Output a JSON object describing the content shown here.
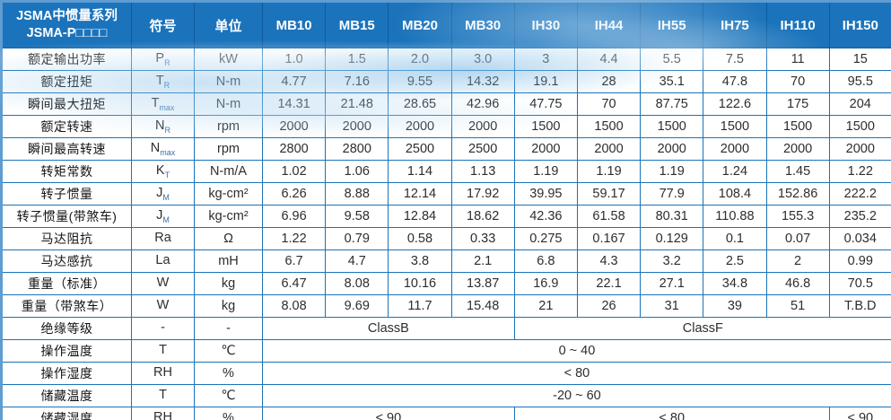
{
  "header": {
    "title_line1": "JSMA中惯量系列",
    "title_line2": "JSMA-P□□□□",
    "symbol_col": "符号",
    "unit_col": "单位",
    "models": [
      "MB10",
      "MB15",
      "MB20",
      "MB30",
      "IH30",
      "IH44",
      "IH55",
      "IH75",
      "IH110",
      "IH150"
    ]
  },
  "colors": {
    "header_bg": "#1B73BB",
    "border_blue": "#1B73B8",
    "outer_border": "#5E9CD1",
    "wave_blue": "#8FC0E4"
  },
  "rows": [
    {
      "label": "额定输出功率",
      "symbol": {
        "base": "P",
        "sub": "R"
      },
      "unit": "kW",
      "cells": [
        {
          "t": "1.0",
          "s": 1
        },
        {
          "t": "1.5",
          "s": 1
        },
        {
          "t": "2.0",
          "s": 1
        },
        {
          "t": "3.0",
          "s": 1
        },
        {
          "t": "3",
          "s": 1
        },
        {
          "t": "4.4",
          "s": 1
        },
        {
          "t": "5.5",
          "s": 1
        },
        {
          "t": "7.5",
          "s": 1
        },
        {
          "t": "11",
          "s": 1
        },
        {
          "t": "15",
          "s": 1
        }
      ]
    },
    {
      "label": "额定扭矩",
      "symbol": {
        "base": "T",
        "sub": "R"
      },
      "unit": "N-m",
      "cells": [
        {
          "t": "4.77",
          "s": 1
        },
        {
          "t": "7.16",
          "s": 1
        },
        {
          "t": "9.55",
          "s": 1
        },
        {
          "t": "14.32",
          "s": 1
        },
        {
          "t": "19.1",
          "s": 1
        },
        {
          "t": "28",
          "s": 1
        },
        {
          "t": "35.1",
          "s": 1
        },
        {
          "t": "47.8",
          "s": 1
        },
        {
          "t": "70",
          "s": 1
        },
        {
          "t": "95.5",
          "s": 1
        }
      ]
    },
    {
      "label": "瞬间最大扭矩",
      "symbol": {
        "base": "T",
        "sub": "max"
      },
      "unit": "N-m",
      "cells": [
        {
          "t": "14.31",
          "s": 1
        },
        {
          "t": "21.48",
          "s": 1
        },
        {
          "t": "28.65",
          "s": 1
        },
        {
          "t": "42.96",
          "s": 1
        },
        {
          "t": "47.75",
          "s": 1
        },
        {
          "t": "70",
          "s": 1
        },
        {
          "t": "87.75",
          "s": 1
        },
        {
          "t": "122.6",
          "s": 1
        },
        {
          "t": "175",
          "s": 1
        },
        {
          "t": "204",
          "s": 1
        }
      ]
    },
    {
      "label": "额定转速",
      "symbol": {
        "base": "N",
        "sub": "R"
      },
      "unit": "rpm",
      "cells": [
        {
          "t": "2000",
          "s": 1
        },
        {
          "t": "2000",
          "s": 1
        },
        {
          "t": "2000",
          "s": 1
        },
        {
          "t": "2000",
          "s": 1
        },
        {
          "t": "1500",
          "s": 1
        },
        {
          "t": "1500",
          "s": 1
        },
        {
          "t": "1500",
          "s": 1
        },
        {
          "t": "1500",
          "s": 1
        },
        {
          "t": "1500",
          "s": 1
        },
        {
          "t": "1500",
          "s": 1
        }
      ]
    },
    {
      "label": "瞬间最高转速",
      "symbol": {
        "base": "N",
        "sub": "max"
      },
      "unit": "rpm",
      "cells": [
        {
          "t": "2800",
          "s": 1
        },
        {
          "t": "2800",
          "s": 1
        },
        {
          "t": "2500",
          "s": 1
        },
        {
          "t": "2500",
          "s": 1
        },
        {
          "t": "2000",
          "s": 1
        },
        {
          "t": "2000",
          "s": 1
        },
        {
          "t": "2000",
          "s": 1
        },
        {
          "t": "2000",
          "s": 1
        },
        {
          "t": "2000",
          "s": 1
        },
        {
          "t": "2000",
          "s": 1
        }
      ]
    },
    {
      "label": "转矩常数",
      "symbol": {
        "base": "K",
        "sub": "T"
      },
      "unit": "N-m/A",
      "cells": [
        {
          "t": "1.02",
          "s": 1
        },
        {
          "t": "1.06",
          "s": 1
        },
        {
          "t": "1.14",
          "s": 1
        },
        {
          "t": "1.13",
          "s": 1
        },
        {
          "t": "1.19",
          "s": 1
        },
        {
          "t": "1.19",
          "s": 1
        },
        {
          "t": "1.19",
          "s": 1
        },
        {
          "t": "1.24",
          "s": 1
        },
        {
          "t": "1.45",
          "s": 1
        },
        {
          "t": "1.22",
          "s": 1
        }
      ]
    },
    {
      "label": "转子惯量",
      "symbol": {
        "base": "J",
        "sub": "M"
      },
      "unit": "kg-cm²",
      "cells": [
        {
          "t": "6.26",
          "s": 1
        },
        {
          "t": "8.88",
          "s": 1
        },
        {
          "t": "12.14",
          "s": 1
        },
        {
          "t": "17.92",
          "s": 1
        },
        {
          "t": "39.95",
          "s": 1
        },
        {
          "t": "59.17",
          "s": 1
        },
        {
          "t": "77.9",
          "s": 1
        },
        {
          "t": "108.4",
          "s": 1
        },
        {
          "t": "152.86",
          "s": 1
        },
        {
          "t": "222.2",
          "s": 1
        }
      ]
    },
    {
      "label": "转子惯量(带煞车)",
      "symbol": {
        "base": "J",
        "sub": "M"
      },
      "unit": "kg-cm²",
      "cells": [
        {
          "t": "6.96",
          "s": 1
        },
        {
          "t": "9.58",
          "s": 1
        },
        {
          "t": "12.84",
          "s": 1
        },
        {
          "t": "18.62",
          "s": 1
        },
        {
          "t": "42.36",
          "s": 1
        },
        {
          "t": "61.58",
          "s": 1
        },
        {
          "t": "80.31",
          "s": 1
        },
        {
          "t": "110.88",
          "s": 1
        },
        {
          "t": "155.3",
          "s": 1
        },
        {
          "t": "235.2",
          "s": 1
        }
      ]
    },
    {
      "label": "马达阻抗",
      "symbol": {
        "base": "Ra",
        "sub": ""
      },
      "unit": "Ω",
      "cells": [
        {
          "t": "1.22",
          "s": 1
        },
        {
          "t": "0.79",
          "s": 1
        },
        {
          "t": "0.58",
          "s": 1
        },
        {
          "t": "0.33",
          "s": 1
        },
        {
          "t": "0.275",
          "s": 1
        },
        {
          "t": "0.167",
          "s": 1
        },
        {
          "t": "0.129",
          "s": 1
        },
        {
          "t": "0.1",
          "s": 1
        },
        {
          "t": "0.07",
          "s": 1
        },
        {
          "t": "0.034",
          "s": 1
        }
      ]
    },
    {
      "label": "马达感抗",
      "symbol": {
        "base": "La",
        "sub": ""
      },
      "unit": "mH",
      "cells": [
        {
          "t": "6.7",
          "s": 1
        },
        {
          "t": "4.7",
          "s": 1
        },
        {
          "t": "3.8",
          "s": 1
        },
        {
          "t": "2.1",
          "s": 1
        },
        {
          "t": "6.8",
          "s": 1
        },
        {
          "t": "4.3",
          "s": 1
        },
        {
          "t": "3.2",
          "s": 1
        },
        {
          "t": "2.5",
          "s": 1
        },
        {
          "t": "2",
          "s": 1
        },
        {
          "t": "0.99",
          "s": 1
        }
      ]
    },
    {
      "label": "重量（标准）",
      "symbol": {
        "base": "W",
        "sub": ""
      },
      "unit": "kg",
      "cells": [
        {
          "t": "6.47",
          "s": 1
        },
        {
          "t": "8.08",
          "s": 1
        },
        {
          "t": "10.16",
          "s": 1
        },
        {
          "t": "13.87",
          "s": 1
        },
        {
          "t": "16.9",
          "s": 1
        },
        {
          "t": "22.1",
          "s": 1
        },
        {
          "t": "27.1",
          "s": 1
        },
        {
          "t": "34.8",
          "s": 1
        },
        {
          "t": "46.8",
          "s": 1
        },
        {
          "t": "70.5",
          "s": 1
        }
      ]
    },
    {
      "label": "重量（带煞车）",
      "symbol": {
        "base": "W",
        "sub": ""
      },
      "unit": "kg",
      "cells": [
        {
          "t": "8.08",
          "s": 1
        },
        {
          "t": "9.69",
          "s": 1
        },
        {
          "t": "11.7",
          "s": 1
        },
        {
          "t": "15.48",
          "s": 1
        },
        {
          "t": "21",
          "s": 1
        },
        {
          "t": "26",
          "s": 1
        },
        {
          "t": "31",
          "s": 1
        },
        {
          "t": "39",
          "s": 1
        },
        {
          "t": "51",
          "s": 1
        },
        {
          "t": "T.B.D",
          "s": 1
        }
      ]
    },
    {
      "label": "绝缘等级",
      "symbol": {
        "base": "-",
        "sub": ""
      },
      "unit": "-",
      "cells": [
        {
          "t": "ClassB",
          "s": 4
        },
        {
          "t": "ClassF",
          "s": 6
        }
      ]
    },
    {
      "label": "操作温度",
      "symbol": {
        "base": "T",
        "sub": ""
      },
      "unit": "℃",
      "cells": [
        {
          "t": "0 ~ 40",
          "s": 10
        }
      ]
    },
    {
      "label": "操作湿度",
      "symbol": {
        "base": "RH",
        "sub": ""
      },
      "unit": "%",
      "cells": [
        {
          "t": "< 80",
          "s": 10
        }
      ]
    },
    {
      "label": "储藏温度",
      "symbol": {
        "base": "T",
        "sub": ""
      },
      "unit": "℃",
      "cells": [
        {
          "t": "-20 ~ 60",
          "s": 10
        }
      ]
    },
    {
      "label": "储藏湿度",
      "symbol": {
        "base": "RH",
        "sub": ""
      },
      "unit": "%",
      "cells": [
        {
          "t": "< 90",
          "s": 4
        },
        {
          "t": "< 80",
          "s": 5
        },
        {
          "t": "< 90",
          "s": 1
        }
      ]
    }
  ]
}
